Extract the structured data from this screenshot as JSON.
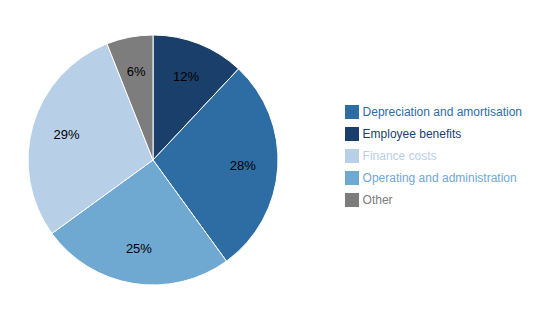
{
  "chart_data": {
    "type": "pie",
    "categories": [
      "Employee benefits",
      "Depreciation and amortisation",
      "Operating and administration",
      "Finance costs",
      "Other"
    ],
    "values": [
      12,
      28,
      25,
      29,
      6
    ],
    "value_labels": [
      "12%",
      "28%",
      "25%",
      "29%",
      "6%"
    ],
    "colors": [
      "#1b3f6b",
      "#2e6da4",
      "#6fa8d0",
      "#b8cfe8",
      "#7d7d7d"
    ],
    "data_labels": true,
    "legend": "right"
  }
}
